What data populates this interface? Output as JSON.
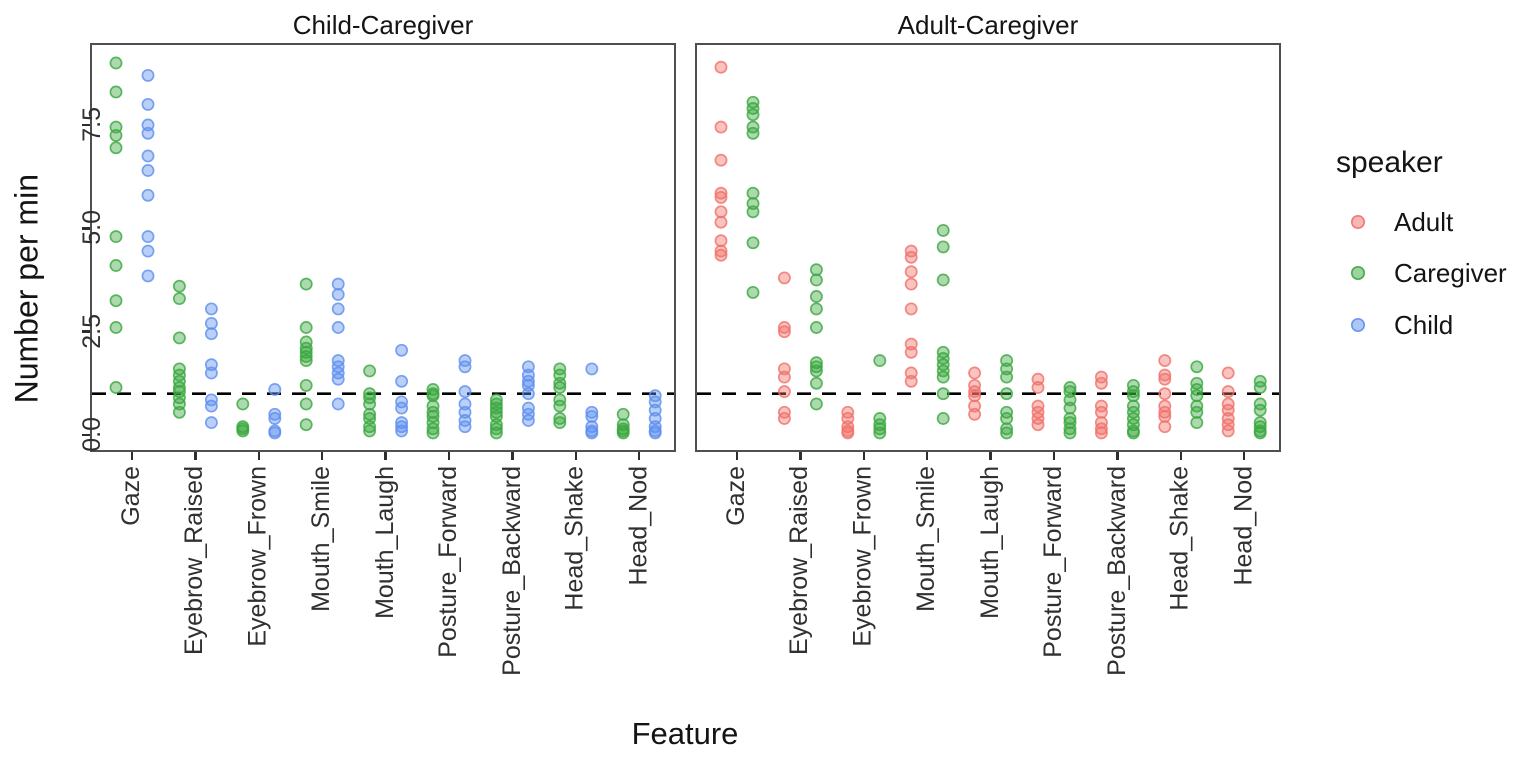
{
  "chart_data": {
    "type": "scatter",
    "xlabel": "Feature",
    "ylabel": "Number per min",
    "yticks": [
      "0.0",
      "2.5",
      "5.0",
      "7.5"
    ],
    "ylim": [
      -0.4,
      9.5
    ],
    "grid": "off",
    "reference_line_y": 1.0,
    "categories": [
      "Gaze",
      "Eyebrow_Raised",
      "Eyebrow_Frown",
      "Mouth_Smile",
      "Mouth_Laugh",
      "Posture_Forward",
      "Posture_Backward",
      "Head_Shake",
      "Head_Nod"
    ],
    "legend": {
      "title": "speaker",
      "position": "right",
      "entries": [
        {
          "label": "Adult",
          "color": "#F0706A"
        },
        {
          "label": "Caregiver",
          "color": "#3AA83E"
        },
        {
          "label": "Child",
          "color": "#5E8FEF"
        }
      ]
    },
    "facets": [
      {
        "label": "Child-Caregiver",
        "series": [
          {
            "name": "Caregiver",
            "values": [
              [
                9.0,
                8.3,
                7.45,
                7.25,
                6.95,
                4.8,
                4.1,
                3.25,
                2.6,
                1.15
              ],
              [
                3.6,
                3.3,
                2.35,
                1.6,
                1.45,
                1.3,
                1.15,
                1.05,
                0.9,
                0.75,
                0.55
              ],
              [
                0.75,
                0.2,
                0.15,
                0.1
              ],
              [
                3.65,
                2.6,
                2.25,
                2.1,
                2.0,
                1.9,
                1.8,
                1.2,
                0.75,
                0.25
              ],
              [
                1.55,
                1.0,
                0.9,
                0.75,
                0.5,
                0.4,
                0.2,
                0.1
              ],
              [
                1.1,
                1.0,
                0.95,
                0.7,
                0.55,
                0.45,
                0.3,
                0.15,
                0.05
              ],
              [
                0.85,
                0.75,
                0.65,
                0.55,
                0.45,
                0.25,
                0.15,
                0.05
              ],
              [
                1.6,
                1.45,
                1.25,
                1.15,
                0.85,
                0.7,
                0.4,
                0.3
              ],
              [
                0.5,
                0.25,
                0.15,
                0.1,
                0.05
              ]
            ]
          },
          {
            "name": "Child",
            "values": [
              [
                8.7,
                8.0,
                7.5,
                7.3,
                6.75,
                6.4,
                5.8,
                4.8,
                4.45,
                3.85
              ],
              [
                3.05,
                2.7,
                2.45,
                1.7,
                1.5,
                0.85,
                0.7,
                0.3
              ],
              [
                1.1,
                0.5,
                0.4,
                0.1,
                0.05
              ],
              [
                3.65,
                3.4,
                3.05,
                2.6,
                1.8,
                1.65,
                1.5,
                1.35,
                0.75
              ],
              [
                2.05,
                1.3,
                0.8,
                0.65,
                0.3,
                0.2,
                0.1
              ],
              [
                1.8,
                1.65,
                1.05,
                0.75,
                0.55,
                0.35,
                0.2
              ],
              [
                1.65,
                1.45,
                1.3,
                1.2,
                1.0,
                0.65,
                0.5,
                0.35
              ],
              [
                1.6,
                0.55,
                0.45,
                0.2,
                0.1,
                0.05
              ],
              [
                0.95,
                0.8,
                0.6,
                0.4,
                0.2,
                0.1,
                0.05
              ]
            ]
          }
        ]
      },
      {
        "label": "Adult-Caregiver",
        "series": [
          {
            "name": "Adult",
            "values": [
              [
                8.9,
                7.45,
                6.65,
                5.85,
                5.75,
                5.4,
                5.15,
                4.7,
                4.45,
                4.35
              ],
              [
                3.8,
                2.6,
                2.5,
                1.6,
                1.4,
                1.05,
                0.55,
                0.4
              ],
              [
                0.55,
                0.4,
                0.2,
                0.1,
                0.05
              ],
              [
                4.45,
                4.3,
                3.95,
                3.65,
                3.05,
                2.2,
                2.0,
                1.5,
                1.3
              ],
              [
                1.5,
                1.2,
                1.05,
                0.95,
                0.7,
                0.5
              ],
              [
                1.35,
                1.15,
                0.7,
                0.55,
                0.4,
                0.25
              ],
              [
                1.4,
                1.25,
                0.7,
                0.55,
                0.3,
                0.15,
                0.05
              ],
              [
                1.8,
                1.45,
                1.35,
                1.0,
                0.7,
                0.55,
                0.45,
                0.2
              ],
              [
                1.5,
                1.05,
                0.75,
                0.6,
                0.4,
                0.25,
                0.1
              ]
            ]
          },
          {
            "name": "Caregiver",
            "values": [
              [
                8.05,
                7.9,
                7.75,
                7.45,
                7.3,
                5.85,
                5.6,
                5.4,
                4.65,
                3.45
              ],
              [
                4.0,
                3.75,
                3.35,
                3.05,
                2.6,
                1.75,
                1.65,
                1.55,
                1.25,
                0.75
              ],
              [
                1.8,
                0.4,
                0.25,
                0.15,
                0.05
              ],
              [
                4.95,
                4.55,
                3.75,
                2.0,
                1.85,
                1.7,
                1.55,
                1.4,
                1.0,
                0.4
              ],
              [
                1.8,
                1.6,
                1.4,
                1.0,
                0.55,
                0.4,
                0.15,
                0.05
              ],
              [
                1.15,
                1.05,
                0.85,
                0.65,
                0.4,
                0.3,
                0.15,
                0.05
              ],
              [
                1.2,
                1.05,
                0.95,
                0.7,
                0.55,
                0.4,
                0.25,
                0.1,
                0.05
              ],
              [
                1.65,
                1.25,
                1.1,
                0.95,
                0.7,
                0.55,
                0.3
              ],
              [
                1.3,
                1.15,
                0.75,
                0.6,
                0.3,
                0.2,
                0.1,
                0.05
              ]
            ]
          }
        ]
      }
    ]
  }
}
